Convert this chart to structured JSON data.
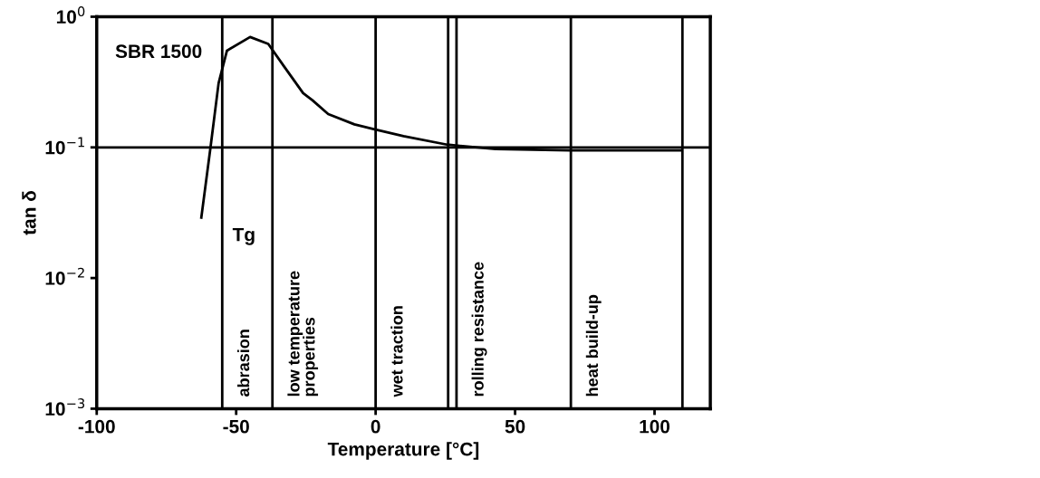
{
  "chart_data": {
    "type": "line",
    "xlabel": "Temperature [°C]",
    "ylabel": "tan δ",
    "log": "y",
    "xlim": [
      -100,
      120
    ],
    "xticks": [
      -100,
      -50,
      0,
      50,
      100
    ],
    "ylim": [
      0.001,
      1
    ],
    "yticks": [
      {
        "value": 0.001,
        "label": "10$^{−3}$"
      },
      {
        "value": 0.01,
        "label": "10$^{−2}$"
      },
      {
        "value": 0.1,
        "label": "10$^{−1}$"
      },
      {
        "value": 1,
        "label": "10$^{0}$"
      }
    ],
    "grid": false,
    "legend": false,
    "marker": "none",
    "line_style": "solid",
    "series": [
      {
        "name": "SBR 1500",
        "color": "#000000",
        "x": [
          -62.5,
          -59.2,
          -56.3,
          -53.3,
          -45,
          -38.5,
          -32.6,
          -26,
          -22.7,
          -17,
          -7.6,
          -0.7,
          10,
          25.6,
          43,
          69.4,
          109.5
        ],
        "values": [
          0.029,
          0.1,
          0.31,
          0.55,
          0.7,
          0.62,
          0.41,
          0.26,
          0.23,
          0.18,
          0.15,
          0.138,
          0.122,
          0.105,
          0.097,
          0.095,
          0.095
        ]
      }
    ],
    "ref_lines": [
      {
        "axis": "y",
        "value": 0.1,
        "color": "#000000",
        "line_style": "solid"
      },
      {
        "axis": "x",
        "value": -55,
        "label": "abrasion",
        "color": "#000000",
        "line_style": "solid"
      },
      {
        "axis": "x",
        "value": -37,
        "label": "low temperature\nproperties",
        "color": "#000000",
        "line_style": "solid"
      },
      {
        "axis": "x",
        "value": 0,
        "label": "wet traction",
        "color": "#000000",
        "line_style": "solid"
      },
      {
        "axis": "x",
        "value": 26,
        "color": "#000000",
        "line_style": "solid"
      },
      {
        "axis": "x",
        "value": 29,
        "label": "rolling resistance",
        "color": "#000000",
        "line_style": "solid"
      },
      {
        "axis": "x",
        "value": 70,
        "label": "heat build-up",
        "color": "#000000",
        "line_style": "solid"
      },
      {
        "axis": "x",
        "value": 110,
        "color": "#000000",
        "line_style": "solid"
      }
    ],
    "annotations": [
      "Tg"
    ]
  }
}
